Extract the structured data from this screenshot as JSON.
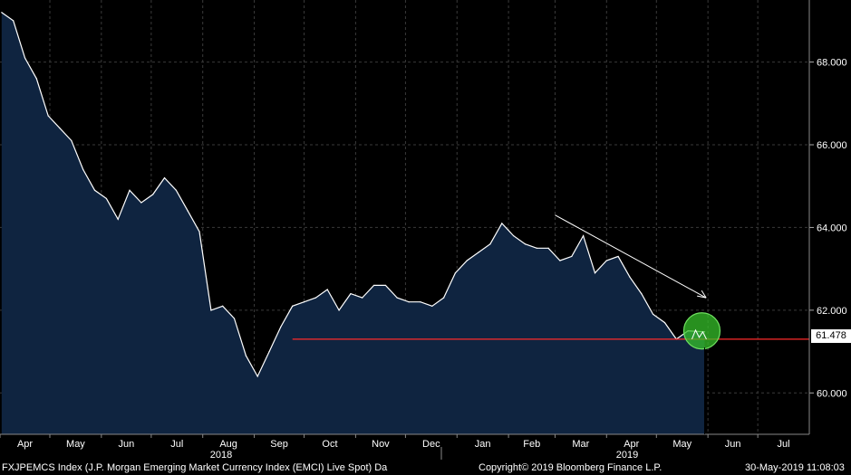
{
  "chart_data": {
    "type": "area",
    "title": "",
    "ylabel": "",
    "ylim": [
      59.0,
      69.5
    ],
    "y_ticks": [
      "60.000",
      "62.000",
      "64.000",
      "66.000",
      "68.000"
    ],
    "y_tick_values": [
      60,
      62,
      64,
      66,
      68
    ],
    "x_labels": [
      "Apr",
      "May",
      "Jun",
      "Jul",
      "Aug",
      "Sep",
      "Oct",
      "Nov",
      "Dec",
      "Jan",
      "Feb",
      "Mar",
      "Apr",
      "May",
      "Jun",
      "Jul"
    ],
    "year_labels": [
      "2018",
      "2019"
    ],
    "last_value": "61.478",
    "support_level": 61.3,
    "grid": true,
    "series": [
      {
        "x": [
          "2018-04-02",
          "2018-04-09",
          "2018-04-16",
          "2018-04-23",
          "2018-04-30",
          "2018-05-07",
          "2018-05-14",
          "2018-05-21",
          "2018-05-28",
          "2018-06-04",
          "2018-06-11",
          "2018-06-18",
          "2018-06-25",
          "2018-07-02",
          "2018-07-09",
          "2018-07-16",
          "2018-07-23",
          "2018-07-30",
          "2018-08-06",
          "2018-08-13",
          "2018-08-20",
          "2018-08-27",
          "2018-09-03",
          "2018-09-10",
          "2018-09-17",
          "2018-09-24",
          "2018-10-01",
          "2018-10-08",
          "2018-10-15",
          "2018-10-22",
          "2018-10-29",
          "2018-11-05",
          "2018-11-12",
          "2018-11-19",
          "2018-11-26",
          "2018-12-03",
          "2018-12-10",
          "2018-12-17",
          "2018-12-24",
          "2018-12-31",
          "2019-01-07",
          "2019-01-14",
          "2019-01-21",
          "2019-01-28",
          "2019-02-04",
          "2019-02-11",
          "2019-02-18",
          "2019-02-25",
          "2019-03-04",
          "2019-03-11",
          "2019-03-18",
          "2019-03-25",
          "2019-04-01",
          "2019-04-08",
          "2019-04-15",
          "2019-04-22",
          "2019-04-29",
          "2019-05-06",
          "2019-05-13",
          "2019-05-20",
          "2019-05-30"
        ],
        "values": [
          69.2,
          69.0,
          68.1,
          67.6,
          66.7,
          66.4,
          66.1,
          65.4,
          64.9,
          64.7,
          64.2,
          64.9,
          64.6,
          64.8,
          65.2,
          64.9,
          64.4,
          63.9,
          62.0,
          62.1,
          61.8,
          60.9,
          60.4,
          61.0,
          61.6,
          62.1,
          62.2,
          62.3,
          62.5,
          62.0,
          62.4,
          62.3,
          62.6,
          62.6,
          62.3,
          62.2,
          62.2,
          62.1,
          62.3,
          62.9,
          63.2,
          63.4,
          63.6,
          64.1,
          63.8,
          63.6,
          63.5,
          63.5,
          63.2,
          63.3,
          63.8,
          62.9,
          63.2,
          63.3,
          62.8,
          62.4,
          61.9,
          61.7,
          61.3,
          61.5,
          61.478
        ]
      }
    ],
    "annotations": [
      "red horizontal support line",
      "white downward arrow",
      "green circle highlight"
    ]
  },
  "footer": {
    "left": "FXJPEMCS Index (J.P. Morgan Emerging Market Currency Index (EMCI) Live Spot)  Da",
    "center": "Copyright© 2019 Bloomberg Finance L.P.",
    "right": "30-May-2019 11:08:03"
  },
  "colors": {
    "background": "#000000",
    "area_fill": "#0f2440",
    "line": "#ffffff",
    "grid": "#3a3a3a",
    "support": "#ff2a2a",
    "highlight": "#35c02a"
  }
}
